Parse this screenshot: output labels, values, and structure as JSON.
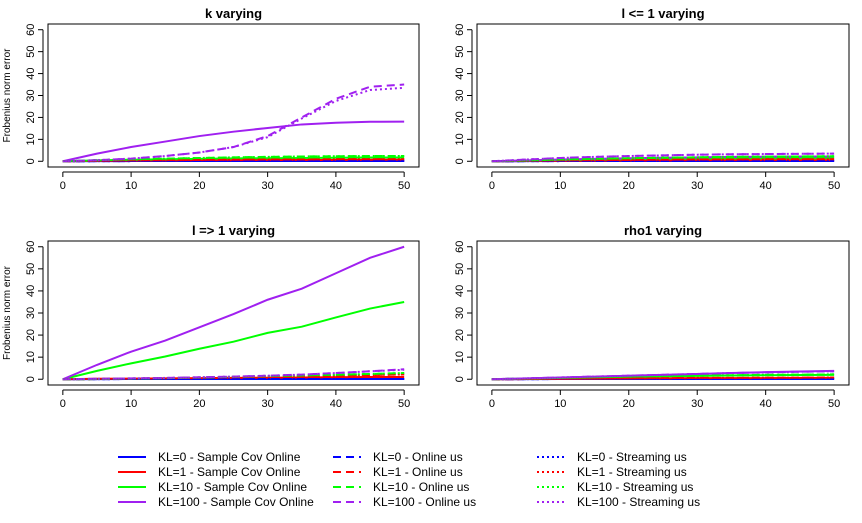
{
  "colors": {
    "KL=0": "#0000ff",
    "KL=1": "#ff0000",
    "KL=10": "#00ff00",
    "KL=100": "#a020f0"
  },
  "legend": {
    "placement": "bottom",
    "columns": [
      {
        "style": "solid",
        "entries": [
          {
            "label": "KL=0 - Sample Cov Online",
            "color_key": "KL=0"
          },
          {
            "label": "KL=1 - Sample Cov Online",
            "color_key": "KL=1"
          },
          {
            "label": "KL=10 - Sample Cov Online",
            "color_key": "KL=10"
          },
          {
            "label": "KL=100 - Sample Cov Online",
            "color_key": "KL=100"
          }
        ]
      },
      {
        "style": "dashed",
        "entries": [
          {
            "label": "KL=0 - Online us",
            "color_key": "KL=0"
          },
          {
            "label": "KL=1 - Online us",
            "color_key": "KL=1"
          },
          {
            "label": "KL=10 - Online us",
            "color_key": "KL=10"
          },
          {
            "label": "KL=100 - Online us",
            "color_key": "KL=100"
          }
        ]
      },
      {
        "style": "dotted",
        "entries": [
          {
            "label": "KL=0 - Streaming us",
            "color_key": "KL=0"
          },
          {
            "label": "KL=1 - Streaming us",
            "color_key": "KL=1"
          },
          {
            "label": "KL=10 - Streaming us",
            "color_key": "KL=10"
          },
          {
            "label": "KL=100 - Streaming us",
            "color_key": "KL=100"
          }
        ]
      }
    ]
  },
  "chart_data": [
    {
      "type": "line",
      "title": "k varying",
      "ylabel": "Frobenius norm error",
      "xlim": [
        0,
        50
      ],
      "ylim": [
        0,
        60
      ],
      "xticks": [
        0,
        10,
        20,
        30,
        40,
        50
      ],
      "yticks": [
        0,
        10,
        20,
        30,
        40,
        50,
        60
      ],
      "x": [
        0,
        5,
        10,
        15,
        20,
        25,
        30,
        35,
        40,
        45,
        50
      ],
      "series": [
        {
          "color_key": "KL=0",
          "style": "solid",
          "values": [
            0,
            0.05,
            0.1,
            0.1,
            0.1,
            0.1,
            0.1,
            0.1,
            0.1,
            0.1,
            0.1
          ]
        },
        {
          "color_key": "KL=1",
          "style": "solid",
          "values": [
            0,
            0.2,
            0.3,
            0.4,
            0.5,
            0.5,
            0.6,
            0.6,
            0.6,
            0.7,
            0.7
          ]
        },
        {
          "color_key": "KL=10",
          "style": "solid",
          "values": [
            0,
            0.4,
            0.7,
            0.9,
            1.1,
            1.3,
            1.4,
            1.5,
            1.6,
            1.7,
            1.7
          ]
        },
        {
          "color_key": "KL=100",
          "style": "solid",
          "values": [
            0,
            3.5,
            6.5,
            9,
            11.5,
            13.5,
            15.2,
            16.8,
            17.6,
            18.0,
            18.1
          ]
        },
        {
          "color_key": "KL=0",
          "style": "dashed",
          "values": [
            0,
            0.05,
            0.1,
            0.1,
            0.1,
            0.1,
            0.1,
            0.1,
            0.1,
            0.1,
            0.1
          ]
        },
        {
          "color_key": "KL=1",
          "style": "dashed",
          "values": [
            0,
            0.2,
            0.4,
            0.5,
            0.6,
            0.7,
            0.8,
            0.8,
            0.9,
            0.9,
            0.9
          ]
        },
        {
          "color_key": "KL=10",
          "style": "dashed",
          "values": [
            0,
            0.5,
            0.9,
            1.2,
            1.5,
            1.8,
            2.0,
            2.2,
            2.3,
            2.4,
            2.4
          ]
        },
        {
          "color_key": "KL=100",
          "style": "dashed",
          "values": [
            0,
            0.5,
            1.2,
            2.4,
            4.0,
            6.5,
            11.5,
            20.0,
            28.5,
            34.0,
            35.0
          ]
        },
        {
          "color_key": "KL=0",
          "style": "dotted",
          "values": [
            0,
            0.05,
            0.1,
            0.1,
            0.1,
            0.1,
            0.1,
            0.1,
            0.1,
            0.1,
            0.1
          ]
        },
        {
          "color_key": "KL=1",
          "style": "dotted",
          "values": [
            0,
            0.2,
            0.4,
            0.5,
            0.6,
            0.7,
            0.8,
            0.8,
            0.9,
            0.9,
            0.9
          ]
        },
        {
          "color_key": "KL=10",
          "style": "dotted",
          "values": [
            0,
            0.5,
            0.9,
            1.2,
            1.5,
            1.8,
            2.0,
            2.2,
            2.3,
            2.4,
            2.4
          ]
        },
        {
          "color_key": "KL=100",
          "style": "dotted",
          "values": [
            0,
            0.5,
            1.2,
            2.4,
            4.0,
            6.5,
            11.0,
            19.5,
            27.5,
            32.5,
            33.5
          ]
        }
      ]
    },
    {
      "type": "line",
      "title": "l <= 1 varying",
      "ylabel": "",
      "xlim": [
        0,
        50
      ],
      "ylim": [
        0,
        60
      ],
      "xticks": [
        0,
        10,
        20,
        30,
        40,
        50
      ],
      "yticks": [
        0,
        10,
        20,
        30,
        40,
        50,
        60
      ],
      "x": [
        0,
        5,
        10,
        15,
        20,
        25,
        30,
        35,
        40,
        45,
        50
      ],
      "series": [
        {
          "color_key": "KL=0",
          "style": "solid",
          "values": [
            0,
            0.05,
            0.1,
            0.1,
            0.1,
            0.1,
            0.1,
            0.1,
            0.1,
            0.1,
            0.1
          ]
        },
        {
          "color_key": "KL=1",
          "style": "solid",
          "values": [
            0,
            0.1,
            0.2,
            0.3,
            0.4,
            0.4,
            0.5,
            0.5,
            0.5,
            0.5,
            0.5
          ]
        },
        {
          "color_key": "KL=10",
          "style": "solid",
          "values": [
            0,
            0.3,
            0.6,
            0.8,
            1.0,
            1.1,
            1.2,
            1.3,
            1.4,
            1.4,
            1.5
          ]
        },
        {
          "color_key": "KL=100",
          "style": "solid",
          "values": [
            0,
            0.4,
            0.8,
            1.1,
            1.4,
            1.6,
            1.8,
            2.0,
            2.1,
            2.2,
            2.2
          ]
        },
        {
          "color_key": "KL=0",
          "style": "dashed",
          "values": [
            0,
            0.05,
            0.1,
            0.1,
            0.1,
            0.1,
            0.1,
            0.1,
            0.1,
            0.1,
            0.1
          ]
        },
        {
          "color_key": "KL=1",
          "style": "dashed",
          "values": [
            0,
            0.2,
            0.4,
            0.5,
            0.6,
            0.7,
            0.8,
            0.8,
            0.9,
            0.9,
            0.9
          ]
        },
        {
          "color_key": "KL=10",
          "style": "dashed",
          "values": [
            0,
            0.4,
            0.8,
            1.1,
            1.4,
            1.6,
            1.8,
            2.0,
            2.1,
            2.2,
            2.3
          ]
        },
        {
          "color_key": "KL=100",
          "style": "dashed",
          "values": [
            0,
            0.8,
            1.5,
            2.0,
            2.4,
            2.7,
            3.0,
            3.2,
            3.3,
            3.4,
            3.5
          ]
        },
        {
          "color_key": "KL=0",
          "style": "dotted",
          "values": [
            0,
            0.05,
            0.1,
            0.1,
            0.1,
            0.1,
            0.1,
            0.1,
            0.1,
            0.1,
            0.1
          ]
        },
        {
          "color_key": "KL=1",
          "style": "dotted",
          "values": [
            0,
            0.2,
            0.4,
            0.5,
            0.6,
            0.7,
            0.8,
            0.8,
            0.9,
            0.9,
            0.9
          ]
        },
        {
          "color_key": "KL=10",
          "style": "dotted",
          "values": [
            0,
            0.4,
            0.8,
            1.1,
            1.4,
            1.6,
            1.8,
            2.0,
            2.1,
            2.2,
            2.3
          ]
        },
        {
          "color_key": "KL=100",
          "style": "dotted",
          "values": [
            0,
            0.8,
            1.5,
            2.0,
            2.4,
            2.7,
            3.0,
            3.2,
            3.3,
            3.4,
            3.5
          ]
        }
      ]
    },
    {
      "type": "line",
      "title": "l => 1 varying",
      "ylabel": "Frobenius norm error",
      "xlim": [
        0,
        50
      ],
      "ylim": [
        0,
        60
      ],
      "xticks": [
        0,
        10,
        20,
        30,
        40,
        50
      ],
      "yticks": [
        0,
        10,
        20,
        30,
        40,
        50,
        60
      ],
      "x": [
        0,
        5,
        10,
        15,
        20,
        25,
        30,
        35,
        40,
        45,
        50
      ],
      "series": [
        {
          "color_key": "KL=0",
          "style": "solid",
          "values": [
            0,
            0.05,
            0.1,
            0.1,
            0.1,
            0.1,
            0.1,
            0.1,
            0.1,
            0.1,
            0.1
          ]
        },
        {
          "color_key": "KL=1",
          "style": "solid",
          "values": [
            0,
            0.2,
            0.3,
            0.4,
            0.5,
            0.6,
            0.7,
            0.8,
            0.9,
            1.0,
            1.0
          ]
        },
        {
          "color_key": "KL=10",
          "style": "solid",
          "values": [
            0,
            3.8,
            7.2,
            10.3,
            13.8,
            17.0,
            21.0,
            23.8,
            28.0,
            32.0,
            35.0
          ]
        },
        {
          "color_key": "KL=100",
          "style": "solid",
          "values": [
            0,
            6.5,
            12.5,
            17.5,
            23.5,
            29.5,
            36.0,
            41.0,
            48.0,
            55.0,
            60.0
          ]
        },
        {
          "color_key": "KL=0",
          "style": "dashed",
          "values": [
            0,
            0.05,
            0.1,
            0.1,
            0.1,
            0.1,
            0.1,
            0.1,
            0.1,
            0.1,
            0.1
          ]
        },
        {
          "color_key": "KL=1",
          "style": "dashed",
          "values": [
            0,
            0.1,
            0.3,
            0.5,
            0.7,
            0.9,
            1.1,
            1.3,
            1.6,
            1.9,
            2.2
          ]
        },
        {
          "color_key": "KL=10",
          "style": "dashed",
          "values": [
            0,
            0.1,
            0.3,
            0.5,
            0.8,
            1.1,
            1.4,
            1.7,
            2.0,
            2.4,
            2.8
          ]
        },
        {
          "color_key": "KL=100",
          "style": "dashed",
          "values": [
            0,
            0.2,
            0.4,
            0.6,
            0.9,
            1.2,
            1.6,
            2.1,
            2.8,
            3.6,
            4.5
          ]
        },
        {
          "color_key": "KL=0",
          "style": "dotted",
          "values": [
            0,
            0.05,
            0.1,
            0.1,
            0.1,
            0.1,
            0.1,
            0.1,
            0.1,
            0.1,
            0.1
          ]
        },
        {
          "color_key": "KL=1",
          "style": "dotted",
          "values": [
            0,
            0.1,
            0.3,
            0.5,
            0.7,
            0.9,
            1.1,
            1.3,
            1.6,
            1.9,
            2.2
          ]
        },
        {
          "color_key": "KL=10",
          "style": "dotted",
          "values": [
            0,
            0.1,
            0.3,
            0.5,
            0.8,
            1.1,
            1.4,
            1.7,
            2.0,
            2.4,
            2.8
          ]
        },
        {
          "color_key": "KL=100",
          "style": "dotted",
          "values": [
            0,
            0.2,
            0.4,
            0.6,
            0.9,
            1.2,
            1.6,
            2.1,
            2.8,
            3.6,
            4.3
          ]
        }
      ]
    },
    {
      "type": "line",
      "title": "rho1 varying",
      "ylabel": "",
      "xlim": [
        0,
        50
      ],
      "ylim": [
        0,
        60
      ],
      "xticks": [
        0,
        10,
        20,
        30,
        40,
        50
      ],
      "yticks": [
        0,
        10,
        20,
        30,
        40,
        50,
        60
      ],
      "x": [
        0,
        5,
        10,
        15,
        20,
        25,
        30,
        35,
        40,
        45,
        50
      ],
      "series": [
        {
          "color_key": "KL=0",
          "style": "solid",
          "values": [
            0,
            0.05,
            0.1,
            0.1,
            0.1,
            0.1,
            0.1,
            0.1,
            0.1,
            0.1,
            0.1
          ]
        },
        {
          "color_key": "KL=1",
          "style": "solid",
          "values": [
            0,
            0.1,
            0.2,
            0.3,
            0.4,
            0.4,
            0.5,
            0.5,
            0.5,
            0.6,
            0.6
          ]
        },
        {
          "color_key": "KL=10",
          "style": "solid",
          "values": [
            0,
            0.3,
            0.6,
            0.9,
            1.1,
            1.3,
            1.5,
            1.7,
            1.8,
            1.9,
            2.0
          ]
        },
        {
          "color_key": "KL=100",
          "style": "solid",
          "values": [
            0,
            0.4,
            0.8,
            1.2,
            1.6,
            2.0,
            2.4,
            2.8,
            3.2,
            3.5,
            3.8
          ]
        },
        {
          "color_key": "KL=0",
          "style": "dashed",
          "values": [
            0,
            0.05,
            0.1,
            0.1,
            0.1,
            0.1,
            0.1,
            0.1,
            0.1,
            0.1,
            0.1
          ]
        },
        {
          "color_key": "KL=1",
          "style": "dashed",
          "values": [
            0,
            0.1,
            0.2,
            0.3,
            0.4,
            0.5,
            0.6,
            0.6,
            0.7,
            0.7,
            0.8
          ]
        },
        {
          "color_key": "KL=10",
          "style": "dashed",
          "values": [
            0,
            0.3,
            0.6,
            0.9,
            1.2,
            1.4,
            1.6,
            1.8,
            2.0,
            2.1,
            2.2
          ]
        },
        {
          "color_key": "KL=100",
          "style": "dashed",
          "values": [
            0,
            0.4,
            0.8,
            1.2,
            1.6,
            2.0,
            2.4,
            2.8,
            3.1,
            3.4,
            3.6
          ]
        },
        {
          "color_key": "KL=0",
          "style": "dotted",
          "values": [
            0,
            0.05,
            0.1,
            0.1,
            0.1,
            0.1,
            0.1,
            0.1,
            0.1,
            0.1,
            0.1
          ]
        },
        {
          "color_key": "KL=1",
          "style": "dotted",
          "values": [
            0,
            0.1,
            0.2,
            0.3,
            0.4,
            0.5,
            0.6,
            0.6,
            0.7,
            0.7,
            0.8
          ]
        },
        {
          "color_key": "KL=10",
          "style": "dotted",
          "values": [
            0,
            0.3,
            0.6,
            0.9,
            1.2,
            1.4,
            1.6,
            1.8,
            2.0,
            2.1,
            2.2
          ]
        },
        {
          "color_key": "KL=100",
          "style": "dotted",
          "values": [
            0,
            0.4,
            0.8,
            1.2,
            1.6,
            2.0,
            2.4,
            2.8,
            3.1,
            3.4,
            3.6
          ]
        }
      ]
    }
  ]
}
